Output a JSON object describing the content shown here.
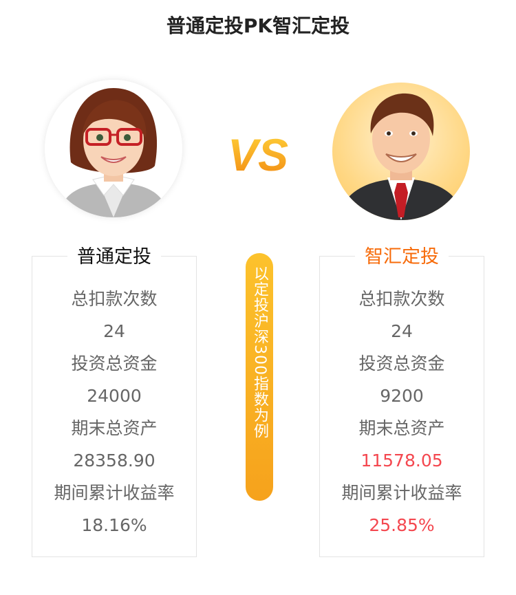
{
  "title": "普通定投PK智汇定投",
  "vs_text": "VS",
  "middle_label": "以定投沪深300指数为例",
  "left": {
    "title": "普通定投",
    "stats": [
      {
        "label": "总扣款次数",
        "value": "24"
      },
      {
        "label": "投资总资金",
        "value": "24000"
      },
      {
        "label": "期末总资产",
        "value": "28358.90"
      },
      {
        "label": "期间累计收益率",
        "value": "18.16%"
      }
    ]
  },
  "right": {
    "title": "智汇定投",
    "stats": [
      {
        "label": "总扣款次数",
        "value": "24"
      },
      {
        "label": "投资总资金",
        "value": "9200"
      },
      {
        "label": "期末总资产",
        "value": "11578.05"
      },
      {
        "label": "期间累计收益率",
        "value": "25.85%"
      }
    ]
  },
  "colors": {
    "accent": "#f76b0a",
    "highlight": "#f4474f",
    "pill": "#fcb524"
  },
  "icons": [
    "woman-avatar-icon",
    "man-avatar-icon"
  ]
}
